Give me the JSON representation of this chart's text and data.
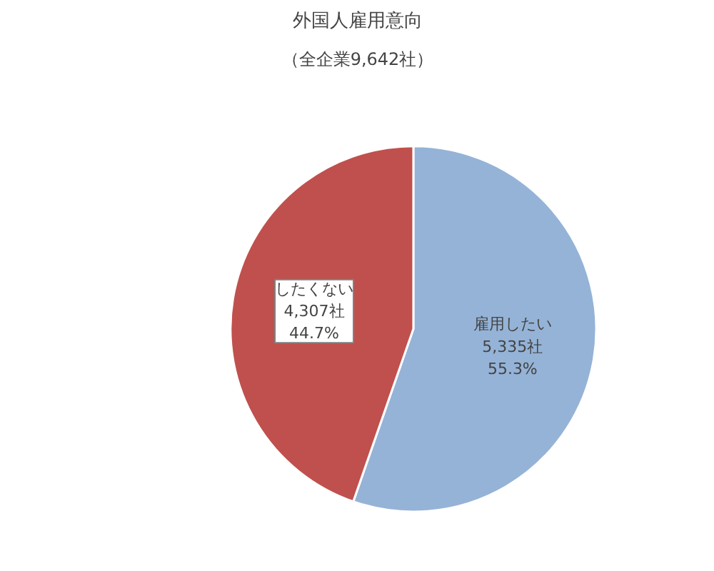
{
  "chart_data": {
    "type": "pie",
    "title": "外国人雇用意向",
    "subtitle": "（全企業9,642社）",
    "categories": [
      "雇用したい",
      "したくない"
    ],
    "values": [
      5335,
      4307
    ],
    "colors": [
      "#95b3d7",
      "#c0504d"
    ],
    "value_labels": [
      "5,335社\n55.3%",
      "4,307社\n44.7%"
    ]
  }
}
